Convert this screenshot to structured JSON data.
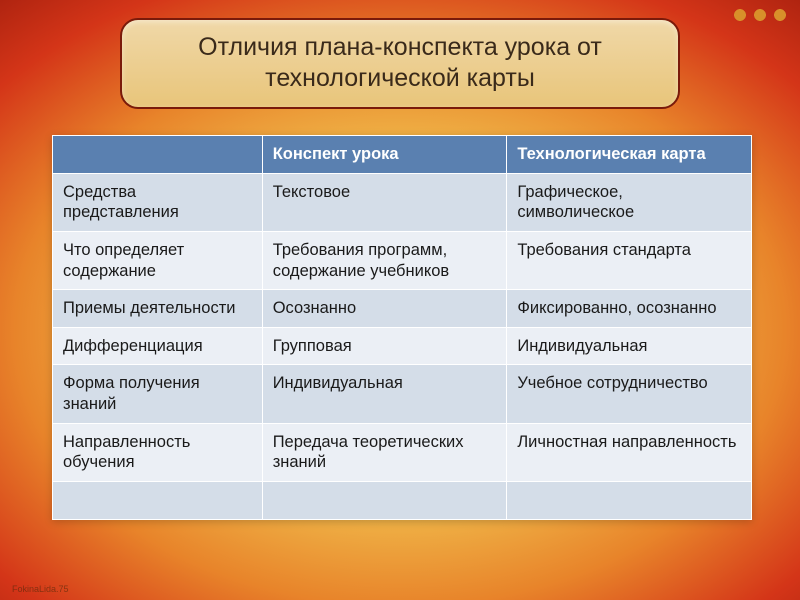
{
  "title": "Отличия плана-конспекта урока от технологической карты",
  "header": {
    "col1": "",
    "col2": "Конспект урока",
    "col3": "Технологическая карта"
  },
  "rows": [
    {
      "label": "Средства представления",
      "c2": "Текстовое",
      "c3": "Графическое, символическое"
    },
    {
      "label": "Что определяет содержание",
      "c2": "Требования программ, содержание учебников",
      "c3": "Требования стандарта"
    },
    {
      "label": "Приемы деятельности",
      "c2": "Осознанно",
      "c3": "Фиксированно, осознанно"
    },
    {
      "label": "Дифференциация",
      "c2": "Групповая",
      "c3": "Индивидуальная"
    },
    {
      "label": "Форма получения знаний",
      "c2": "Индивидуальная",
      "c3": "Учебное сотрудничество"
    },
    {
      "label": "Направленность обучения",
      "c2": "Передача теоретических знаний",
      "c3": "Личностная направленность"
    },
    {
      "label": "",
      "c2": "",
      "c3": ""
    }
  ],
  "footer_text": "FokinaLida.75"
}
